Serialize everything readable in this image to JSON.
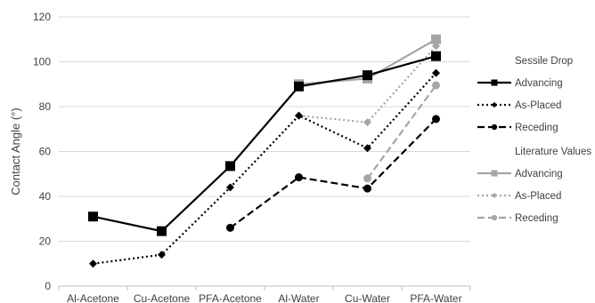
{
  "chart_data": {
    "type": "line",
    "title": "",
    "xlabel": "",
    "ylabel": "Contact Angle (°)",
    "ylim": [
      0,
      120
    ],
    "yticks": [
      0,
      20,
      40,
      60,
      80,
      100,
      120
    ],
    "grid": "horizontal",
    "legend_position": "right",
    "categories": [
      "Al-Acetone",
      "Cu-Acetone",
      "PFA-Acetone",
      "Al-Water",
      "Cu-Water",
      "PFA-Water"
    ],
    "legend_groups": [
      {
        "title": "Sessile Drop",
        "series": [
          {
            "name": "Advancing",
            "color": "#000000",
            "dash": "solid",
            "marker": "square",
            "values": [
              31,
              24.5,
              53.5,
              89,
              94,
              102.5
            ]
          },
          {
            "name": "As-Placed",
            "color": "#000000",
            "dash": "dotted",
            "marker": "diamond",
            "values": [
              10,
              14,
              44,
              76,
              61.5,
              95
            ]
          },
          {
            "name": "Receding",
            "color": "#000000",
            "dash": "dashed",
            "marker": "circle",
            "values": [
              null,
              null,
              26,
              48.5,
              43.5,
              74.5
            ]
          }
        ]
      },
      {
        "title": "Literature Values",
        "series": [
          {
            "name": "Advancing",
            "color": "#a6a6a6",
            "dash": "solid",
            "marker": "square",
            "values": [
              null,
              null,
              null,
              90,
              92.5,
              110
            ]
          },
          {
            "name": "As-Placed",
            "color": "#a6a6a6",
            "dash": "dotted",
            "marker": "diamond",
            "values": [
              null,
              null,
              null,
              76,
              73,
              107
            ]
          },
          {
            "name": "Receding",
            "color": "#a6a6a6",
            "dash": "dashed",
            "marker": "circle",
            "values": [
              null,
              null,
              null,
              null,
              48,
              89.5
            ]
          }
        ]
      }
    ]
  }
}
